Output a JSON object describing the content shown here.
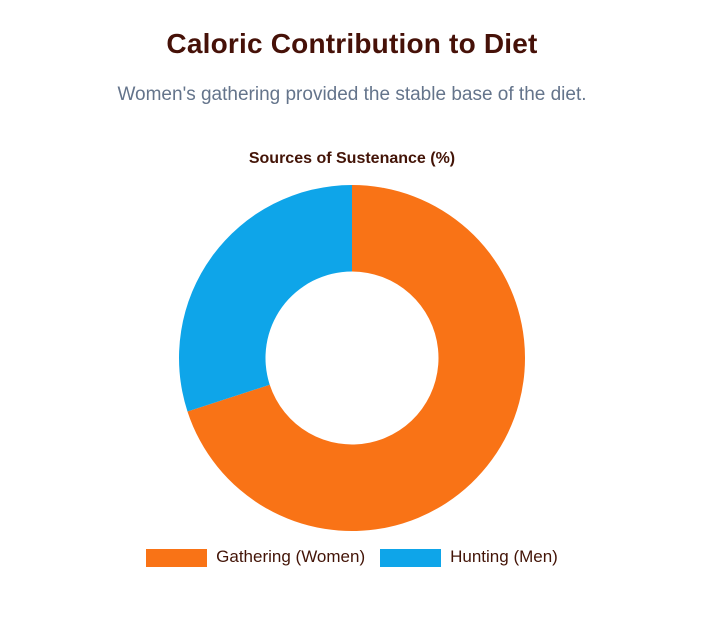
{
  "page": {
    "title": "Caloric Contribution to Diet",
    "subtitle": "Women's gathering provided the stable base of the diet."
  },
  "chart_data": {
    "type": "pie",
    "variant": "doughnut",
    "title": "Sources of Sustenance (%)",
    "categories": [
      "Gathering (Women)",
      "Hunting (Men)"
    ],
    "values": [
      70,
      30
    ],
    "unit": "%",
    "colors": [
      "#f97316",
      "#0ea5e9"
    ],
    "cutout_percent": 50,
    "start_angle_deg": -90,
    "direction": "clockwise",
    "legend_position": "bottom",
    "borders": "none"
  },
  "theme": {
    "background": "#ffffff",
    "title_color": "#461108",
    "subtitle_color": "#64748b",
    "chart_title_color": "#431407",
    "legend_text_color": "#431407"
  }
}
